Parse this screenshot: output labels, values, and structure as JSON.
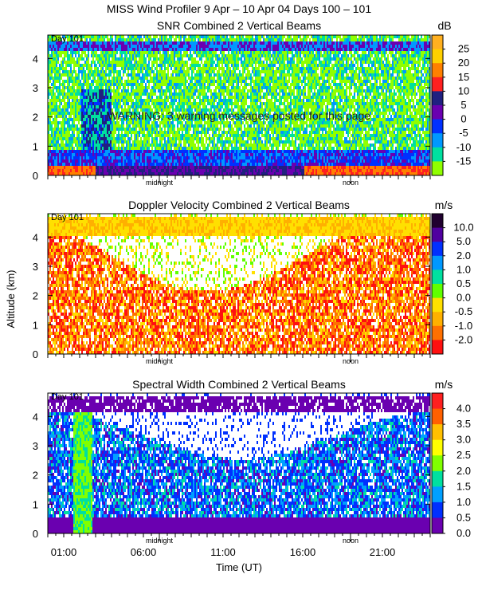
{
  "header": {
    "title": "MISS Wind Profiler    9 Apr – 10 Apr 04 Days 100 – 101"
  },
  "warning_text": "WARNING: 3 warning messages posted for this page",
  "y_axis": {
    "label": "Altitude (km)",
    "range": [
      0,
      4.8
    ],
    "ticks": [
      "0",
      "1",
      "2",
      "3",
      "4"
    ]
  },
  "x_axis": {
    "label": "Time (UT)",
    "range_hours": [
      0,
      24
    ],
    "ticks": [
      {
        "hour": 1,
        "label": "01:00"
      },
      {
        "hour": 6,
        "label": "06:00"
      },
      {
        "hour": 11,
        "label": "11:00"
      },
      {
        "hour": 16,
        "label": "16:00"
      },
      {
        "hour": 21,
        "label": "21:00"
      }
    ],
    "markers": [
      {
        "hour": 7,
        "label": "midnight"
      },
      {
        "hour": 19,
        "label": "noon"
      }
    ]
  },
  "chart_data": [
    {
      "type": "heatmap",
      "title": "SNR Combined 2 Vertical Beams",
      "day_label": "Day 101",
      "unit": "dB",
      "xlabel": "Time (UT)",
      "ylabel": "Altitude (km)",
      "xlim": [
        0,
        24
      ],
      "ylim": [
        0,
        4.8
      ],
      "colorbar": {
        "labels": [
          "25",
          "20",
          "15",
          "10",
          "5",
          "0",
          "-5",
          "-10",
          "-15"
        ],
        "colors": [
          "#ffb020",
          "#ffd000",
          "#ff8000",
          "#ff2020",
          "#202080",
          "#6a00b0",
          "#0030ff",
          "#0098ff",
          "#00e0a0",
          "#90ff00"
        ]
      }
    },
    {
      "type": "heatmap",
      "title": "Doppler Velocity Combined 2 Vertical Beams",
      "day_label": "Day 101",
      "unit": "m/s",
      "xlabel": "Time (UT)",
      "ylabel": "Altitude (km)",
      "xlim": [
        0,
        24
      ],
      "ylim": [
        0,
        4.8
      ],
      "colorbar": {
        "labels": [
          "10.0",
          "5.0",
          "2.0",
          "1.0",
          "0.5",
          "0.0",
          "-0.5",
          "-1.0",
          "-2.0"
        ],
        "colors": [
          "#200030",
          "#5000a0",
          "#0030ff",
          "#0098ff",
          "#00e0a0",
          "#60ff00",
          "#ffe000",
          "#ffb000",
          "#ff7000",
          "#ff1010"
        ]
      }
    },
    {
      "type": "heatmap",
      "title": "Spectral Width Combined 2 Vertical Beams",
      "day_label": "Day 101",
      "unit": "m/s",
      "xlabel": "Time (UT)",
      "ylabel": "Altitude (km)",
      "xlim": [
        0,
        24
      ],
      "ylim": [
        0,
        4.8
      ],
      "colorbar": {
        "labels": [
          "4.0",
          "3.5",
          "3.0",
          "2.5",
          "2.0",
          "1.5",
          "1.0",
          "0.5",
          "0.0"
        ],
        "colors": [
          "#ff2020",
          "#ff6000",
          "#ffc000",
          "#ffff00",
          "#80ff00",
          "#00e0a0",
          "#00a0ff",
          "#0030ff",
          "#6a00b0"
        ]
      }
    }
  ]
}
